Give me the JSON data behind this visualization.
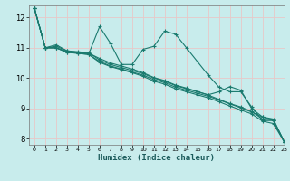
{
  "title": "",
  "xlabel": "Humidex (Indice chaleur)",
  "background_color": "#c8ecec",
  "grid_color": "#e8c8c8",
  "line_color": "#1a7a6e",
  "xlim": [
    -0.5,
    23
  ],
  "ylim": [
    7.8,
    12.4
  ],
  "yticks": [
    8,
    9,
    10,
    11,
    12
  ],
  "xticks": [
    0,
    1,
    2,
    3,
    4,
    5,
    6,
    7,
    8,
    9,
    10,
    11,
    12,
    13,
    14,
    15,
    16,
    17,
    18,
    19,
    20,
    21,
    22,
    23
  ],
  "lines": [
    {
      "x": [
        0,
        1,
        2,
        3,
        4,
        5,
        6,
        7,
        8,
        9,
        10,
        11,
        12,
        13,
        14,
        15,
        16,
        17,
        18,
        19,
        20,
        21,
        22,
        23
      ],
      "y": [
        12.3,
        11.0,
        11.1,
        10.9,
        10.85,
        10.8,
        11.7,
        11.15,
        10.45,
        10.45,
        10.95,
        11.05,
        11.55,
        11.45,
        11.0,
        10.55,
        10.1,
        9.7,
        9.55,
        9.55,
        9.05,
        8.6,
        8.6,
        7.9
      ]
    },
    {
      "x": [
        0,
        1,
        2,
        3,
        4,
        5,
        6,
        7,
        8,
        9,
        10,
        11,
        12,
        13,
        14,
        15,
        16,
        17,
        18,
        19,
        20,
        21,
        22,
        23
      ],
      "y": [
        12.3,
        11.0,
        11.0,
        10.85,
        10.82,
        10.78,
        10.55,
        10.4,
        10.3,
        10.2,
        10.1,
        9.95,
        9.85,
        9.7,
        9.6,
        9.5,
        9.4,
        9.28,
        9.15,
        9.02,
        8.88,
        8.72,
        8.6,
        7.9
      ]
    },
    {
      "x": [
        0,
        1,
        2,
        3,
        4,
        5,
        6,
        7,
        8,
        9,
        10,
        11,
        12,
        13,
        14,
        15,
        16,
        17,
        18,
        19,
        20,
        21,
        22,
        23
      ],
      "y": [
        12.3,
        11.0,
        11.0,
        10.85,
        10.82,
        10.78,
        10.52,
        10.38,
        10.28,
        10.18,
        10.06,
        9.9,
        9.8,
        9.65,
        9.55,
        9.45,
        9.35,
        9.22,
        9.08,
        8.95,
        8.82,
        8.58,
        8.5,
        7.9
      ]
    },
    {
      "x": [
        0,
        1,
        2,
        3,
        4,
        5,
        6,
        7,
        8,
        9,
        10,
        11,
        12,
        13,
        14,
        15,
        16,
        17,
        18,
        19,
        20,
        21,
        22,
        23
      ],
      "y": [
        12.3,
        11.0,
        11.0,
        10.88,
        10.85,
        10.82,
        10.65,
        10.5,
        10.4,
        10.3,
        10.18,
        10.02,
        9.92,
        9.77,
        9.67,
        9.56,
        9.44,
        9.3,
        9.16,
        9.05,
        8.9,
        8.65,
        8.62,
        7.9
      ]
    },
    {
      "x": [
        0,
        1,
        2,
        3,
        4,
        5,
        6,
        7,
        8,
        9,
        10,
        11,
        12,
        13,
        14,
        15,
        16,
        17,
        18,
        19,
        20,
        21,
        22,
        23
      ],
      "y": [
        12.3,
        11.0,
        11.05,
        10.9,
        10.87,
        10.84,
        10.6,
        10.45,
        10.35,
        10.25,
        10.15,
        10.0,
        9.9,
        9.75,
        9.65,
        9.55,
        9.45,
        9.55,
        9.72,
        9.6,
        9.0,
        8.72,
        8.65,
        7.9
      ]
    }
  ]
}
